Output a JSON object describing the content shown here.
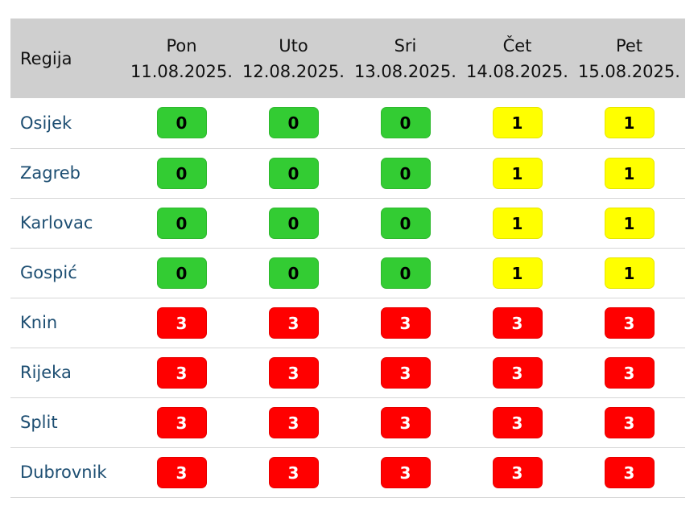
{
  "table": {
    "region_header": "Regija",
    "days": [
      {
        "day": "Pon",
        "date": "11.08.2025."
      },
      {
        "day": "Uto",
        "date": "12.08.2025."
      },
      {
        "day": "Sri",
        "date": "13.08.2025."
      },
      {
        "day": "Čet",
        "date": "14.08.2025."
      },
      {
        "day": "Pet",
        "date": "15.08.2025."
      }
    ],
    "rows": [
      {
        "region": "Osijek",
        "levels": [
          "0",
          "0",
          "0",
          "1",
          "1"
        ]
      },
      {
        "region": "Zagreb",
        "levels": [
          "0",
          "0",
          "0",
          "1",
          "1"
        ]
      },
      {
        "region": "Karlovac",
        "levels": [
          "0",
          "0",
          "0",
          "1",
          "1"
        ]
      },
      {
        "region": "Gospić",
        "levels": [
          "0",
          "0",
          "0",
          "1",
          "1"
        ]
      },
      {
        "region": "Knin",
        "levels": [
          "3",
          "3",
          "3",
          "3",
          "3"
        ]
      },
      {
        "region": "Rijeka",
        "levels": [
          "3",
          "3",
          "3",
          "3",
          "3"
        ]
      },
      {
        "region": "Split",
        "levels": [
          "3",
          "3",
          "3",
          "3",
          "3"
        ]
      },
      {
        "region": "Dubrovnik",
        "levels": [
          "3",
          "3",
          "3",
          "3",
          "3"
        ]
      }
    ]
  },
  "colors": {
    "level_0": "#33cc33",
    "level_1": "#ffff00",
    "level_3": "#ff0000",
    "header_bg": "#cfcfcf",
    "region_text": "#1d4e72"
  }
}
